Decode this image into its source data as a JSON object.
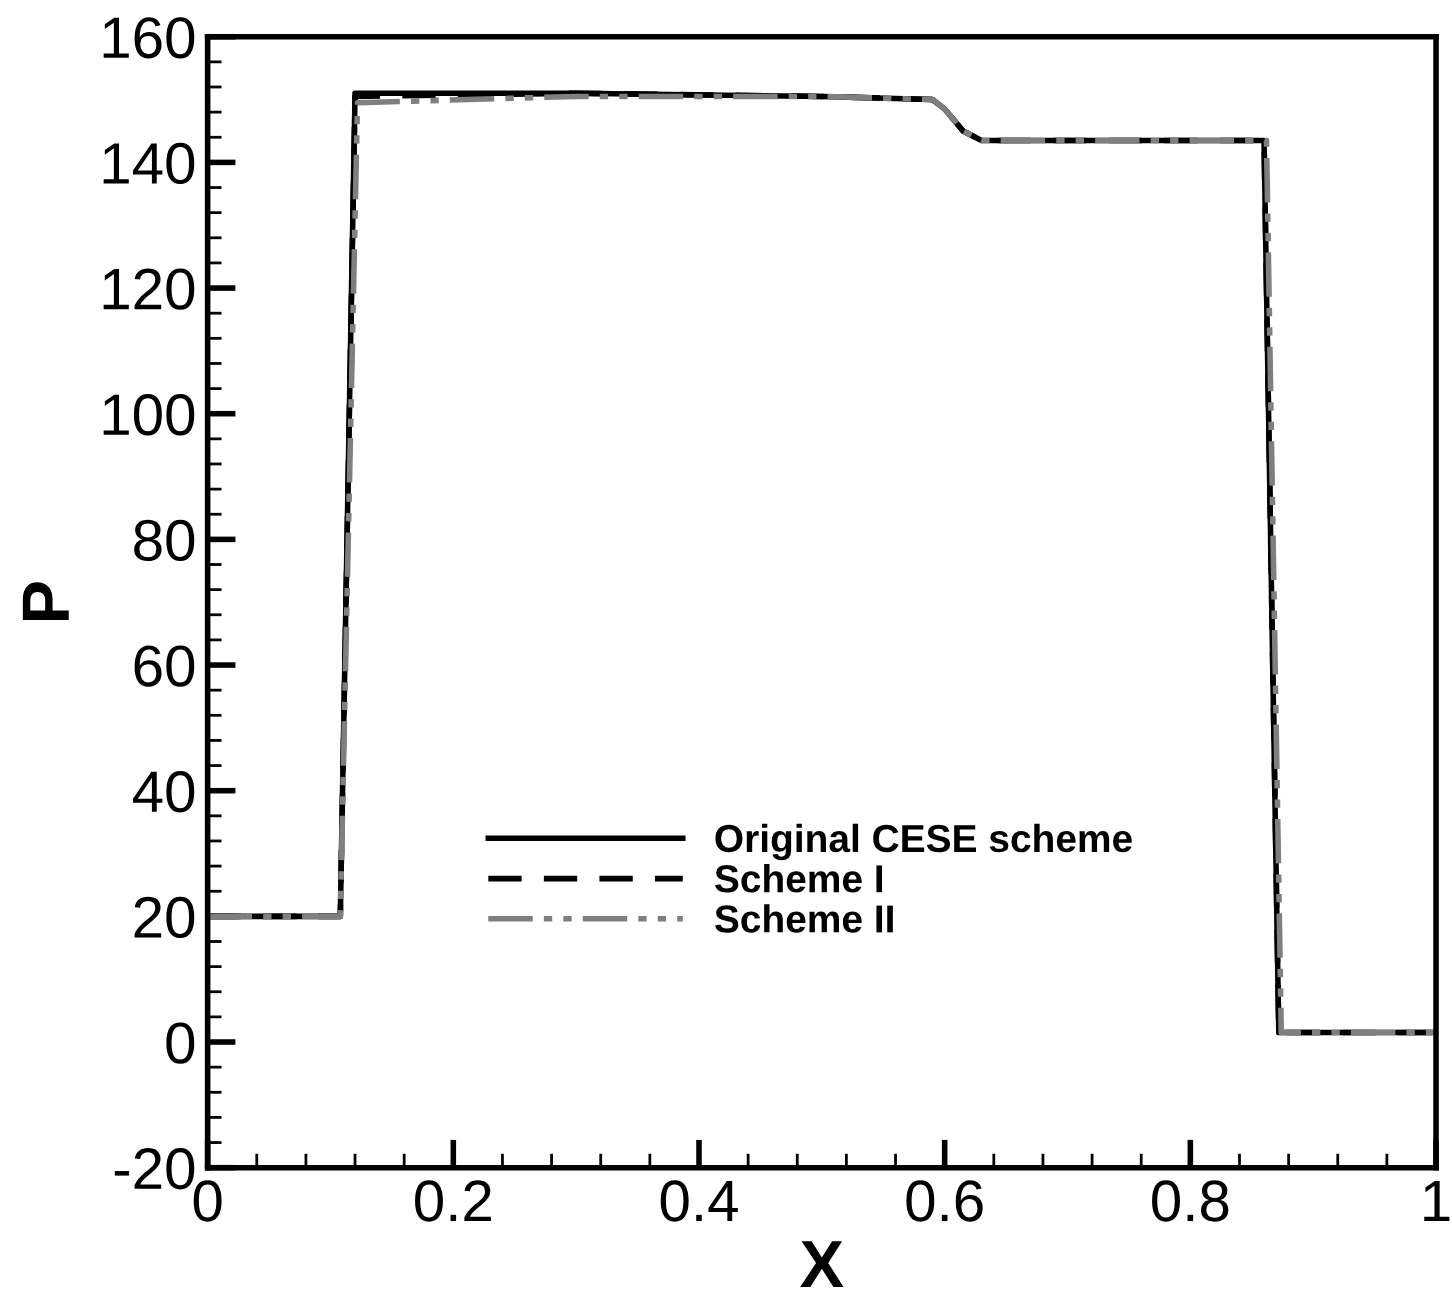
{
  "chart_data": {
    "type": "line",
    "xlabel": "X",
    "ylabel": "P",
    "xlim": [
      0,
      1
    ],
    "ylim": [
      -20,
      160
    ],
    "xticks": [
      0,
      0.2,
      0.4,
      0.6,
      0.8,
      1
    ],
    "yticks": [
      -20,
      0,
      20,
      40,
      60,
      80,
      100,
      120,
      140,
      160
    ],
    "grid": false,
    "legend": "bottom left",
    "series": [
      {
        "name": "Original CESE scheme",
        "color": "#000000",
        "line_style": "solid",
        "x": [
          0,
          0.108,
          0.12,
          0.3,
          0.5,
          0.59,
          0.6,
          0.615,
          0.63,
          0.645,
          0.86,
          0.872,
          1
        ],
        "values": [
          20,
          20,
          151,
          151,
          150.5,
          150,
          148.5,
          145,
          143.5,
          143.5,
          143.5,
          1.5,
          1.5
        ]
      },
      {
        "name": "Scheme I",
        "color": "#000000",
        "line_style": "dashed",
        "x": [
          0,
          0.108,
          0.12,
          0.3,
          0.5,
          0.59,
          0.6,
          0.615,
          0.63,
          0.645,
          0.86,
          0.872,
          1
        ],
        "values": [
          20,
          20,
          150.5,
          151,
          150.5,
          150,
          148.5,
          145,
          143.5,
          143.5,
          143.5,
          1.5,
          1.5
        ]
      },
      {
        "name": "Scheme II",
        "color": "#7f7f7f",
        "line_style": "dashdotdot",
        "x": [
          0,
          0.108,
          0.122,
          0.3,
          0.5,
          0.59,
          0.6,
          0.615,
          0.63,
          0.645,
          0.862,
          0.874,
          1
        ],
        "values": [
          20,
          20,
          149.5,
          150.5,
          150.5,
          150,
          148.5,
          145,
          143.5,
          143.5,
          143.5,
          1.5,
          1.5
        ]
      }
    ]
  }
}
